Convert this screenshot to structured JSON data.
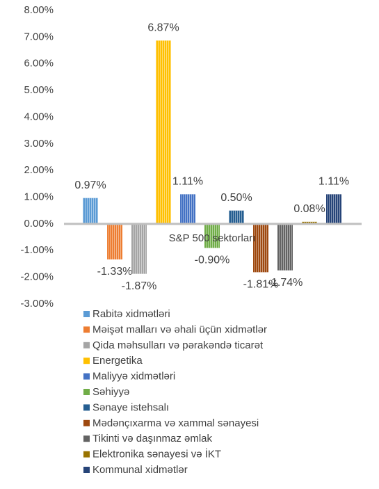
{
  "chart_data": {
    "type": "bar",
    "categories": [
      "S&P 500 sektorları"
    ],
    "ylim": [
      -3,
      8
    ],
    "yticks": [
      {
        "value": 8,
        "label": "8.00%"
      },
      {
        "value": 7,
        "label": "7.00%"
      },
      {
        "value": 6,
        "label": "6.00%"
      },
      {
        "value": 5,
        "label": "5.00%"
      },
      {
        "value": 4,
        "label": "4.00%"
      },
      {
        "value": 3,
        "label": "3.00%"
      },
      {
        "value": 2,
        "label": "2.00%"
      },
      {
        "value": 1,
        "label": "1.00%"
      },
      {
        "value": 0,
        "label": "0.00%"
      },
      {
        "value": -1,
        "label": "-1.00%"
      },
      {
        "value": -2,
        "label": "-2.00%"
      },
      {
        "value": -3,
        "label": "-3.00%"
      }
    ],
    "series": [
      {
        "name": "Rabitə xidmətləri",
        "color": "#5b9bd5",
        "values": [
          0.97
        ],
        "value_labels": [
          "0.97%"
        ]
      },
      {
        "name": "Məişət malları və əhali üçün xidmətlər",
        "color": "#ed7d31",
        "values": [
          -1.33
        ],
        "value_labels": [
          "-1.33%"
        ]
      },
      {
        "name": "Qida məhsulları və pərakəndə ticarət",
        "color": "#a5a5a5",
        "values": [
          -1.87
        ],
        "value_labels": [
          "-1.87%"
        ]
      },
      {
        "name": "Energetika",
        "color": "#ffc000",
        "values": [
          6.87
        ],
        "value_labels": [
          "6.87%"
        ]
      },
      {
        "name": "Maliyyə xidmətləri",
        "color": "#4472c4",
        "values": [
          1.11
        ],
        "value_labels": [
          "1.11%"
        ]
      },
      {
        "name": "Səhiyyə",
        "color": "#70ad47",
        "values": [
          -0.9
        ],
        "value_labels": [
          "-0.90%"
        ]
      },
      {
        "name": "Sənaye istehsalı",
        "color": "#255e91",
        "values": [
          0.5
        ],
        "value_labels": [
          "0.50%"
        ]
      },
      {
        "name": "Mədənçıxarma və xammal sənayesi",
        "color": "#9e480e",
        "values": [
          -1.81
        ],
        "value_labels": [
          "-1.81%"
        ]
      },
      {
        "name": "Tikinti və daşınmaz əmlak",
        "color": "#636363",
        "values": [
          -1.74
        ],
        "value_labels": [
          "-1.74%"
        ]
      },
      {
        "name": "Elektronika sənayesi və İKT",
        "color": "#997300",
        "values": [
          0.08
        ],
        "value_labels": [
          "0.08%"
        ]
      },
      {
        "name": "Kommunal xidmətlər",
        "color": "#264478",
        "values": [
          1.11
        ],
        "value_labels": [
          "1.11%"
        ]
      }
    ]
  }
}
